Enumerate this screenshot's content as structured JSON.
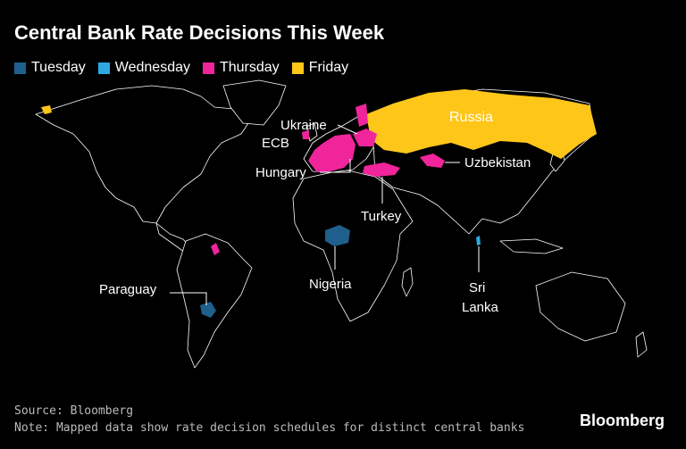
{
  "title": "Central Bank Rate Decisions This Week",
  "legend": [
    {
      "label": "Tuesday",
      "color": "#1f5f8b"
    },
    {
      "label": "Wednesday",
      "color": "#2ea8e0"
    },
    {
      "label": "Thursday",
      "color": "#f0259b"
    },
    {
      "label": "Friday",
      "color": "#ffc61a"
    }
  ],
  "labels": {
    "russia": "Russia",
    "ukraine": "Ukraine",
    "ecb": "ECB",
    "hungary": "Hungary",
    "uzbekistan": "Uzbekistan",
    "turkey": "Turkey",
    "nigeria": "Nigeria",
    "sri_lanka_line1": "Sri",
    "sri_lanka_line2": "Lanka",
    "paraguay": "Paraguay"
  },
  "footer": {
    "source": "Source: Bloomberg",
    "note": "Note: Mapped data show rate decision schedules for distinct central banks"
  },
  "brand": "Bloomberg"
}
